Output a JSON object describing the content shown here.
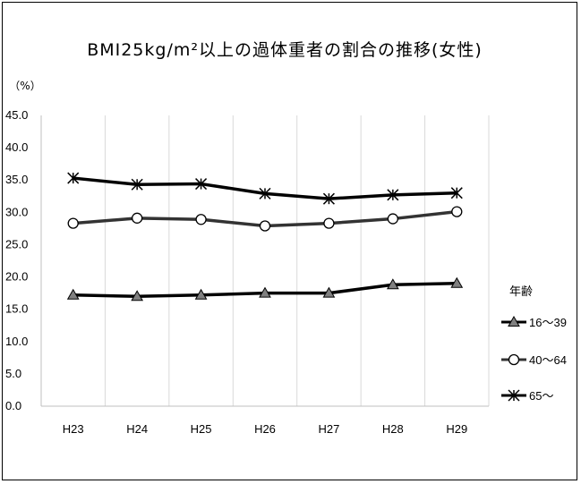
{
  "chart_data": {
    "type": "line",
    "title": "BMI25kg/m²以上の過体重者の割合の推移(女性)",
    "y_unit_label": "（%）",
    "categories": [
      "H23",
      "H24",
      "H25",
      "H26",
      "H27",
      "H28",
      "H29"
    ],
    "y_ticks": [
      "45.0",
      "40.0",
      "35.0",
      "30.0",
      "25.0",
      "20.0",
      "15.0",
      "10.0",
      "5.0",
      "0.0"
    ],
    "ylim": [
      0,
      45
    ],
    "grid": "vertical",
    "legend": {
      "title": "年齢",
      "position": "right"
    },
    "series": [
      {
        "name": "16〜39",
        "marker": "triangle",
        "color": "#000000",
        "values": [
          17.2,
          17.0,
          17.2,
          17.5,
          17.5,
          18.8,
          19.0
        ]
      },
      {
        "name": "40〜64",
        "marker": "circle",
        "color": "#333333",
        "values": [
          28.3,
          29.1,
          28.9,
          27.9,
          28.3,
          29.0,
          30.1
        ]
      },
      {
        "name": "65〜",
        "marker": "star",
        "color": "#000000",
        "values": [
          35.3,
          34.3,
          34.4,
          32.9,
          32.1,
          32.7,
          33.0
        ]
      }
    ]
  }
}
